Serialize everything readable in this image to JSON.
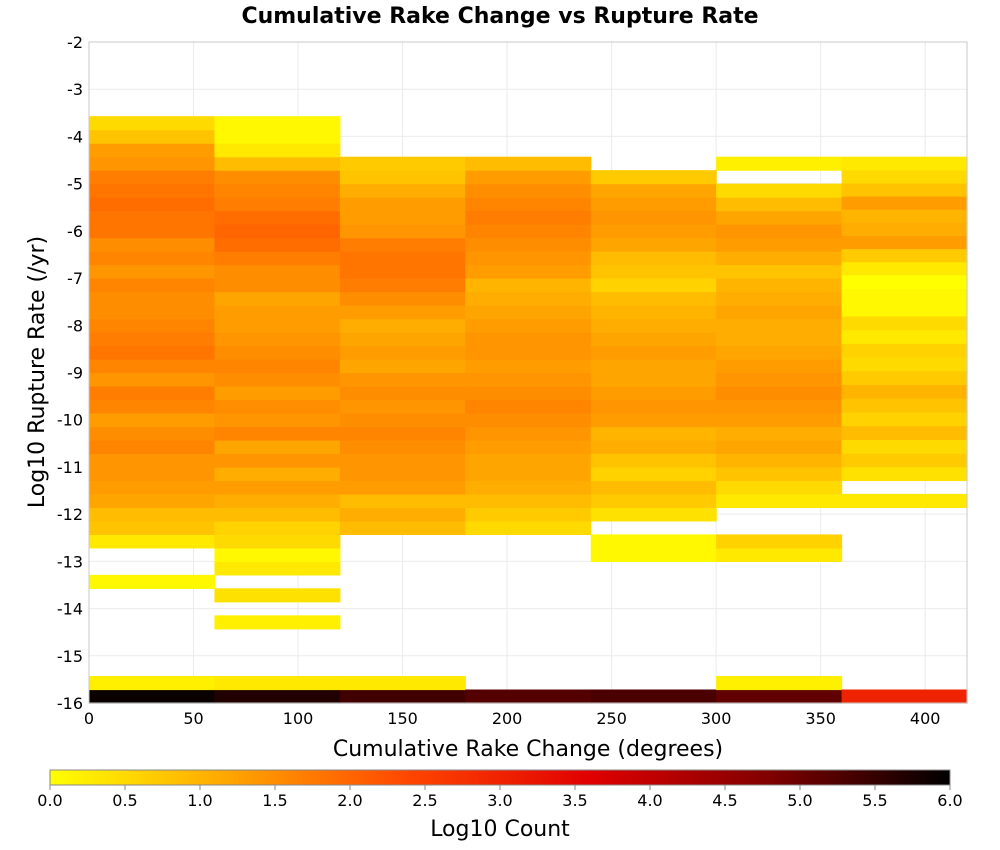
{
  "chart_data": {
    "type": "heatmap",
    "title": "Cumulative Rake Change vs Rupture Rate",
    "xlabel": "Cumulative Rake Change (degrees)",
    "ylabel": "Log10 Rupture Rate (/yr)",
    "xlim": [
      0,
      420
    ],
    "ylim": [
      -16,
      -2
    ],
    "x_ticks": [
      0,
      50,
      100,
      150,
      200,
      250,
      300,
      350,
      400
    ],
    "y_ticks": [
      -2,
      -3,
      -4,
      -5,
      -6,
      -7,
      -8,
      -9,
      -10,
      -11,
      -12,
      -13,
      -14,
      -15,
      -16
    ],
    "grid": true,
    "x_bin_edges": [
      0,
      60,
      120,
      180,
      240,
      300,
      360,
      420
    ],
    "y_bin_width": 0.2857,
    "y_bin_origin": -16,
    "colorbar": {
      "label": "Log10 Count",
      "range": [
        0.0,
        6.0
      ],
      "ticks": [
        "0.0",
        "0.5",
        "1.0",
        "1.5",
        "2.0",
        "2.5",
        "3.0",
        "3.5",
        "4.0",
        "4.5",
        "5.0",
        "5.5",
        "6.0"
      ],
      "colors": [
        "#ffff00",
        "#ffa500",
        "#ff4500",
        "#e00000",
        "#800000",
        "#000000"
      ]
    },
    "columns": [
      {
        "x_range": [
          0,
          60
        ],
        "bins": [
          {
            "start": -16.0,
            "end": -15.714,
            "values": [
              5.9
            ]
          },
          {
            "start": -15.714,
            "end": -15.429,
            "values": [
              0.2
            ]
          },
          {
            "start": -13.571,
            "end": -13.286,
            "values": [
              0.1
            ]
          },
          {
            "start": -12.714,
            "end": -3.571,
            "values": [
              0.3,
              0.8,
              0.9,
              1.2,
              1.3,
              1.4,
              1.4,
              1.6,
              1.5,
              1.3,
              1.6,
              1.7,
              1.4,
              1.6,
              1.8,
              1.7,
              1.6,
              1.5,
              1.5,
              1.6,
              1.4,
              1.6,
              1.5,
              1.8,
              1.8,
              1.9,
              1.8,
              1.7,
              1.4,
              1.3,
              0.8,
              0.5
            ]
          }
        ]
      },
      {
        "x_range": [
          60,
          120
        ],
        "bins": [
          {
            "start": -16.0,
            "end": -15.714,
            "values": [
              5.7
            ]
          },
          {
            "start": -15.714,
            "end": -15.429,
            "values": [
              0.3
            ]
          },
          {
            "start": -14.429,
            "end": -14.143,
            "values": [
              0.2
            ]
          },
          {
            "start": -13.857,
            "end": -13.571,
            "values": [
              0.4
            ]
          },
          {
            "start": -13.286,
            "end": -12.429,
            "values": [
              0.3,
              0.1,
              0.5
            ]
          },
          {
            "start": -12.429,
            "end": -3.571,
            "values": [
              0.6,
              0.9,
              1.1,
              1.3,
              1.1,
              1.4,
              1.2,
              1.6,
              1.4,
              1.5,
              1.3,
              1.5,
              1.6,
              1.5,
              1.4,
              1.3,
              1.3,
              1.2,
              1.5,
              1.5,
              1.7,
              1.9,
              2.0,
              1.9,
              1.7,
              1.6,
              1.5,
              0.9,
              0.3,
              0.1,
              0.1
            ]
          }
        ]
      },
      {
        "x_range": [
          120,
          180
        ],
        "bins": [
          {
            "start": -16.0,
            "end": -15.714,
            "values": [
              5.4
            ]
          },
          {
            "start": -15.714,
            "end": -15.429,
            "values": [
              0.3
            ]
          },
          {
            "start": -12.429,
            "end": -4.429,
            "values": [
              0.9,
              1.1,
              0.9,
              1.3,
              1.4,
              1.4,
              1.5,
              1.6,
              1.5,
              1.4,
              1.5,
              1.4,
              1.2,
              1.3,
              1.2,
              1.1,
              1.3,
              1.5,
              1.7,
              1.8,
              1.8,
              1.7,
              1.4,
              1.3,
              1.3,
              1.1,
              0.8,
              0.7
            ]
          }
        ]
      },
      {
        "x_range": [
          180,
          240
        ],
        "bins": [
          {
            "start": -16.0,
            "end": -15.714,
            "values": [
              5.2
            ]
          },
          {
            "start": -12.429,
            "end": -4.429,
            "values": [
              0.5,
              0.7,
              0.9,
              1.1,
              1.2,
              1.2,
              1.3,
              1.4,
              1.5,
              1.6,
              1.5,
              1.4,
              1.3,
              1.4,
              1.4,
              1.3,
              1.2,
              1.1,
              1.0,
              1.3,
              1.4,
              1.5,
              1.6,
              1.7,
              1.6,
              1.5,
              1.3,
              0.9
            ]
          }
        ]
      },
      {
        "x_range": [
          240,
          300
        ],
        "bins": [
          {
            "start": -16.0,
            "end": -15.714,
            "values": [
              5.3
            ]
          },
          {
            "start": -13.0,
            "end": -12.429,
            "values": [
              0.1,
              0.1
            ]
          },
          {
            "start": -12.143,
            "end": -4.714,
            "values": [
              0.4,
              0.7,
              0.9,
              0.6,
              0.8,
              1.1,
              1.0,
              1.3,
              1.4,
              1.3,
              1.2,
              1.2,
              1.3,
              1.2,
              1.1,
              1.0,
              0.9,
              0.6,
              0.8,
              0.9,
              1.2,
              1.3,
              1.4,
              1.3,
              1.2,
              0.7
            ]
          }
        ]
      },
      {
        "x_range": [
          300,
          360
        ],
        "bins": [
          {
            "start": -16.0,
            "end": -15.714,
            "values": [
              5.1
            ]
          },
          {
            "start": -15.714,
            "end": -15.429,
            "values": [
              0.2
            ]
          },
          {
            "start": -13.0,
            "end": -12.429,
            "values": [
              0.3,
              0.6
            ]
          },
          {
            "start": -11.857,
            "end": -5.0,
            "values": [
              0.3,
              0.5,
              0.8,
              1.0,
              1.2,
              1.1,
              1.3,
              1.4,
              1.5,
              1.4,
              1.3,
              1.2,
              1.1,
              1.1,
              1.2,
              1.1,
              1.0,
              0.8,
              1.1,
              1.3,
              1.4,
              1.2,
              0.9,
              0.5
            ]
          },
          {
            "start": -4.714,
            "end": -4.429,
            "values": [
              0.2
            ]
          }
        ]
      },
      {
        "x_range": [
          360,
          420
        ],
        "bins": [
          {
            "start": -16.0,
            "end": -15.714,
            "values": [
              3.0
            ]
          },
          {
            "start": -11.857,
            "end": -11.571,
            "values": [
              0.3
            ]
          },
          {
            "start": -11.286,
            "end": -6.929,
            "values": [
              0.4,
              0.7,
              0.5,
              0.9,
              0.6,
              0.8,
              1.0,
              0.7,
              0.5,
              0.6,
              0.3,
              0.5,
              0.1,
              0.1,
              0.0
            ]
          },
          {
            "start": -6.929,
            "end": -4.429,
            "values": [
              0.3,
              0.7,
              1.3,
              1.1,
              1.0,
              1.3,
              0.8,
              0.5,
              0.3
            ]
          }
        ]
      }
    ]
  }
}
